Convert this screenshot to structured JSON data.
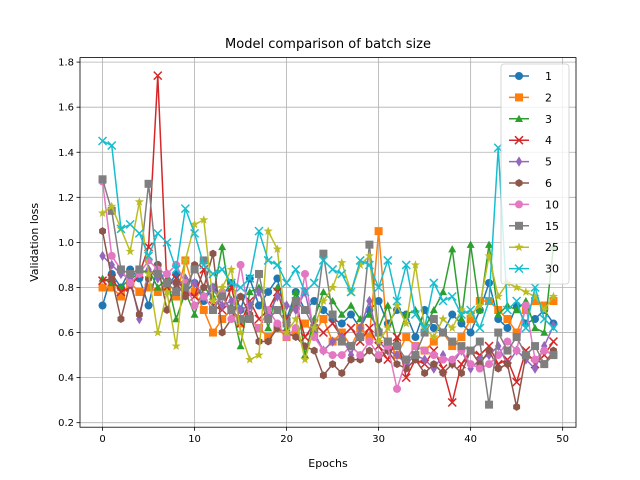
{
  "chart_data": {
    "type": "line",
    "title": "Model comparison of batch size",
    "xlabel": "Epochs",
    "ylabel": "Validation loss",
    "xlim": [
      -2.45,
      51.45
    ],
    "ylim": [
      0.18,
      1.82
    ],
    "xticks": [
      0,
      10,
      20,
      30,
      40,
      50
    ],
    "yticks": [
      0.2,
      0.4,
      0.6,
      0.8,
      1.0,
      1.2,
      1.4,
      1.6,
      1.8
    ],
    "grid": true,
    "legend_position": "top-right",
    "x": [
      0,
      1,
      2,
      3,
      4,
      5,
      6,
      7,
      8,
      9,
      10,
      11,
      12,
      13,
      14,
      15,
      16,
      17,
      18,
      19,
      20,
      21,
      22,
      23,
      24,
      25,
      26,
      27,
      28,
      29,
      30,
      31,
      32,
      33,
      34,
      35,
      36,
      37,
      38,
      39,
      40,
      41,
      42,
      43,
      44,
      45,
      46,
      47,
      48,
      49
    ],
    "series": [
      {
        "name": "1",
        "color": "#1f77b4",
        "marker": "circle",
        "values": [
          0.72,
          0.86,
          0.8,
          0.88,
          0.84,
          0.72,
          0.9,
          0.8,
          0.86,
          0.78,
          0.82,
          0.74,
          0.8,
          0.76,
          0.82,
          0.7,
          0.84,
          0.72,
          0.78,
          0.84,
          0.66,
          0.78,
          0.7,
          0.74,
          0.7,
          0.66,
          0.64,
          0.68,
          0.62,
          0.7,
          0.74,
          0.64,
          0.7,
          0.68,
          0.58,
          0.7,
          0.62,
          0.6,
          0.68,
          0.64,
          0.6,
          0.7,
          0.82,
          0.66,
          0.62,
          0.72,
          0.64,
          0.66,
          0.7,
          0.64
        ]
      },
      {
        "name": "2",
        "color": "#ff7f0e",
        "marker": "square",
        "values": [
          0.8,
          0.8,
          0.76,
          0.82,
          0.78,
          0.8,
          0.78,
          0.8,
          0.76,
          0.92,
          0.78,
          0.7,
          0.6,
          0.66,
          0.7,
          0.64,
          0.66,
          0.62,
          0.58,
          0.62,
          0.58,
          0.6,
          0.64,
          0.6,
          0.66,
          0.56,
          0.6,
          0.54,
          0.62,
          0.58,
          1.05,
          0.56,
          0.5,
          0.58,
          0.54,
          0.52,
          0.56,
          0.6,
          0.54,
          0.58,
          0.66,
          0.74,
          0.74,
          0.7,
          0.66,
          0.6,
          0.7,
          0.74,
          0.72,
          0.74
        ]
      },
      {
        "name": "3",
        "color": "#2ca02c",
        "marker": "triangle",
        "values": [
          0.84,
          0.82,
          0.8,
          0.84,
          0.86,
          0.88,
          0.8,
          0.84,
          0.66,
          0.78,
          0.68,
          0.8,
          0.76,
          0.98,
          0.72,
          0.54,
          0.78,
          0.8,
          0.62,
          0.8,
          0.62,
          0.78,
          0.5,
          0.66,
          0.78,
          0.74,
          0.68,
          0.72,
          0.66,
          0.68,
          0.62,
          0.72,
          0.56,
          0.68,
          0.7,
          0.62,
          0.7,
          0.78,
          0.97,
          0.66,
          0.99,
          0.7,
          0.99,
          0.68,
          0.72,
          0.7,
          0.74,
          0.62,
          0.6,
          0.98
        ]
      },
      {
        "name": "4",
        "color": "#d62728",
        "marker": "x",
        "values": [
          0.83,
          0.84,
          0.78,
          0.8,
          0.86,
          0.98,
          1.74,
          0.8,
          0.84,
          0.78,
          0.76,
          0.88,
          0.72,
          0.7,
          0.8,
          0.64,
          0.74,
          0.66,
          0.7,
          0.78,
          0.66,
          0.72,
          0.58,
          0.64,
          0.6,
          0.64,
          0.58,
          0.62,
          0.56,
          0.62,
          0.54,
          0.48,
          0.58,
          0.4,
          0.48,
          0.46,
          0.52,
          0.44,
          0.29,
          0.46,
          0.52,
          0.5,
          0.54,
          0.46,
          0.48,
          0.38,
          0.52,
          0.46,
          0.5,
          0.56
        ]
      },
      {
        "name": "5",
        "color": "#9467bd",
        "marker": "diamond",
        "values": [
          0.94,
          0.9,
          0.86,
          0.84,
          0.66,
          0.88,
          0.84,
          0.86,
          0.8,
          0.84,
          0.82,
          0.76,
          0.8,
          0.72,
          0.74,
          0.7,
          0.72,
          0.78,
          0.68,
          0.76,
          0.72,
          0.7,
          0.78,
          0.6,
          0.52,
          0.56,
          0.58,
          0.5,
          0.62,
          0.74,
          0.56,
          0.52,
          0.5,
          0.46,
          0.5,
          0.48,
          0.44,
          0.5,
          0.46,
          0.52,
          0.44,
          0.48,
          0.5,
          0.54,
          0.46,
          0.52,
          0.48,
          0.44,
          0.54,
          0.63
        ]
      },
      {
        "name": "6",
        "color": "#8c564b",
        "marker": "hexagon",
        "values": [
          1.05,
          0.84,
          0.66,
          0.82,
          0.68,
          0.84,
          0.9,
          0.7,
          0.82,
          0.76,
          0.9,
          0.8,
          0.95,
          0.6,
          0.66,
          0.76,
          0.68,
          0.56,
          0.56,
          0.62,
          0.6,
          0.58,
          0.54,
          0.52,
          0.41,
          0.46,
          0.42,
          0.48,
          0.48,
          0.52,
          0.48,
          0.52,
          0.46,
          0.44,
          0.48,
          0.42,
          0.46,
          0.42,
          0.46,
          0.42,
          0.52,
          0.46,
          0.52,
          0.44,
          0.46,
          0.27,
          0.5,
          0.48,
          0.46,
          0.52
        ]
      },
      {
        "name": "10",
        "color": "#e377c2",
        "marker": "circle",
        "values": [
          1.27,
          0.94,
          0.88,
          0.82,
          0.86,
          0.92,
          0.88,
          0.86,
          0.9,
          0.82,
          0.72,
          0.76,
          0.7,
          0.78,
          0.66,
          0.9,
          0.66,
          0.62,
          0.7,
          0.64,
          0.58,
          0.62,
          0.86,
          0.58,
          0.52,
          0.5,
          0.5,
          0.54,
          0.5,
          0.56,
          0.5,
          0.54,
          0.35,
          0.48,
          0.54,
          0.52,
          0.5,
          0.48,
          0.48,
          0.52,
          0.46,
          0.44,
          0.46,
          0.5,
          0.56,
          0.52,
          0.72,
          0.48,
          0.52,
          0.5
        ]
      },
      {
        "name": "15",
        "color": "#7f7f7f",
        "marker": "square",
        "values": [
          1.28,
          1.14,
          0.88,
          0.86,
          0.88,
          1.26,
          0.86,
          0.82,
          0.78,
          0.8,
          0.88,
          0.92,
          0.7,
          0.76,
          0.7,
          0.66,
          0.66,
          0.86,
          0.66,
          0.7,
          0.64,
          0.74,
          0.7,
          0.62,
          0.95,
          0.68,
          0.56,
          0.54,
          0.58,
          0.99,
          0.6,
          0.56,
          0.54,
          0.48,
          0.5,
          0.6,
          0.66,
          0.6,
          0.56,
          0.54,
          0.52,
          0.56,
          0.28,
          0.6,
          0.52,
          0.58,
          0.5,
          0.54,
          0.46,
          0.5
        ]
      },
      {
        "name": "25",
        "color": "#bcbd22",
        "marker": "star",
        "values": [
          1.13,
          1.16,
          1.06,
          0.96,
          1.18,
          0.86,
          0.6,
          0.78,
          0.54,
          0.92,
          1.08,
          1.1,
          0.74,
          0.8,
          0.88,
          0.6,
          0.48,
          0.5,
          1.05,
          0.97,
          0.6,
          0.66,
          0.48,
          0.62,
          0.74,
          0.8,
          0.91,
          0.78,
          0.9,
          0.94,
          0.56,
          0.62,
          0.72,
          0.64,
          0.9,
          0.62,
          0.58,
          0.66,
          0.62,
          0.7,
          0.68,
          0.72,
          0.94,
          0.76,
          0.82,
          0.8,
          0.78,
          0.76,
          0.7,
          0.76
        ]
      },
      {
        "name": "30",
        "color": "#17becf",
        "marker": "x",
        "values": [
          1.45,
          1.43,
          1.06,
          1.08,
          1.04,
          0.94,
          1.04,
          1.0,
          0.88,
          1.15,
          1.04,
          0.9,
          0.86,
          0.88,
          0.82,
          0.8,
          0.84,
          1.05,
          0.92,
          0.9,
          0.82,
          0.88,
          0.78,
          0.82,
          0.92,
          0.88,
          0.86,
          0.78,
          0.92,
          0.9,
          0.8,
          0.92,
          0.74,
          0.9,
          0.68,
          0.62,
          0.82,
          0.74,
          0.76,
          0.68,
          0.7,
          0.62,
          0.74,
          1.42,
          0.7,
          0.74,
          0.62,
          0.8,
          0.66,
          0.62
        ]
      }
    ]
  }
}
